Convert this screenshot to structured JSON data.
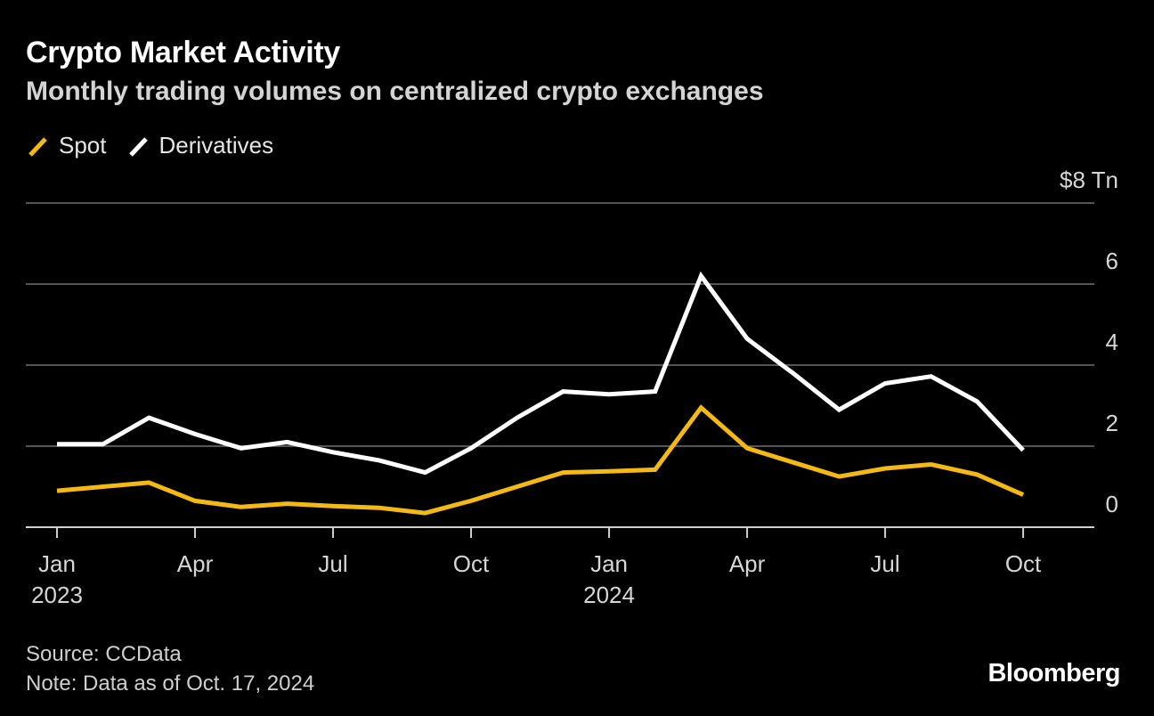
{
  "header": {
    "title": "Crypto Market Activity",
    "subtitle": "Monthly trading volumes on centralized crypto exchanges"
  },
  "footer": {
    "source": "Source: CCData",
    "note": "Note: Data as of Oct. 17, 2024",
    "brand": "Bloomberg"
  },
  "colors": {
    "background": "#000000",
    "spot": "#F5B914",
    "derivatives": "#FFFFFF",
    "gridline": "#555555",
    "text": "#D6D6D6"
  },
  "chart_data": {
    "type": "line",
    "title": "Crypto Market Activity",
    "subtitle": "Monthly trading volumes on centralized crypto exchanges",
    "x": [
      "2023-01",
      "2023-02",
      "2023-03",
      "2023-04",
      "2023-05",
      "2023-06",
      "2023-07",
      "2023-08",
      "2023-09",
      "2023-10",
      "2023-11",
      "2023-12",
      "2024-01",
      "2024-02",
      "2024-03",
      "2024-04",
      "2024-05",
      "2024-06",
      "2024-07",
      "2024-08",
      "2024-09",
      "2024-10"
    ],
    "series": [
      {
        "name": "Spot",
        "color": "#F5B914",
        "values": [
          0.9,
          1.0,
          1.1,
          0.65,
          0.5,
          0.58,
          0.52,
          0.48,
          0.35,
          0.65,
          1.0,
          1.35,
          1.38,
          1.42,
          2.95,
          1.95,
          1.6,
          1.25,
          1.45,
          1.55,
          1.3,
          0.8
        ]
      },
      {
        "name": "Derivatives",
        "color": "#FFFFFF",
        "values": [
          2.05,
          2.05,
          2.7,
          2.3,
          1.95,
          2.1,
          1.85,
          1.65,
          1.35,
          1.95,
          2.7,
          3.35,
          3.28,
          3.35,
          6.2,
          4.65,
          3.8,
          2.9,
          3.55,
          3.72,
          3.1,
          1.9
        ]
      }
    ],
    "x_tick_labels": [
      {
        "x": "2023-01",
        "month": "Jan",
        "year": "2023"
      },
      {
        "x": "2023-04",
        "month": "Apr",
        "year": ""
      },
      {
        "x": "2023-07",
        "month": "Jul",
        "year": ""
      },
      {
        "x": "2023-10",
        "month": "Oct",
        "year": ""
      },
      {
        "x": "2024-01",
        "month": "Jan",
        "year": "2024"
      },
      {
        "x": "2024-04",
        "month": "Apr",
        "year": ""
      },
      {
        "x": "2024-07",
        "month": "Jul",
        "year": ""
      },
      {
        "x": "2024-10",
        "month": "Oct",
        "year": ""
      }
    ],
    "y_ticks": [
      {
        "value": 0,
        "label": "0"
      },
      {
        "value": 2,
        "label": "2"
      },
      {
        "value": 4,
        "label": "4"
      },
      {
        "value": 6,
        "label": "6"
      },
      {
        "value": 8,
        "label": "$8 Tn"
      }
    ],
    "ylim": [
      0,
      8
    ],
    "grid": true,
    "legend_position": "top-left",
    "xlabel": "",
    "ylabel": ""
  }
}
